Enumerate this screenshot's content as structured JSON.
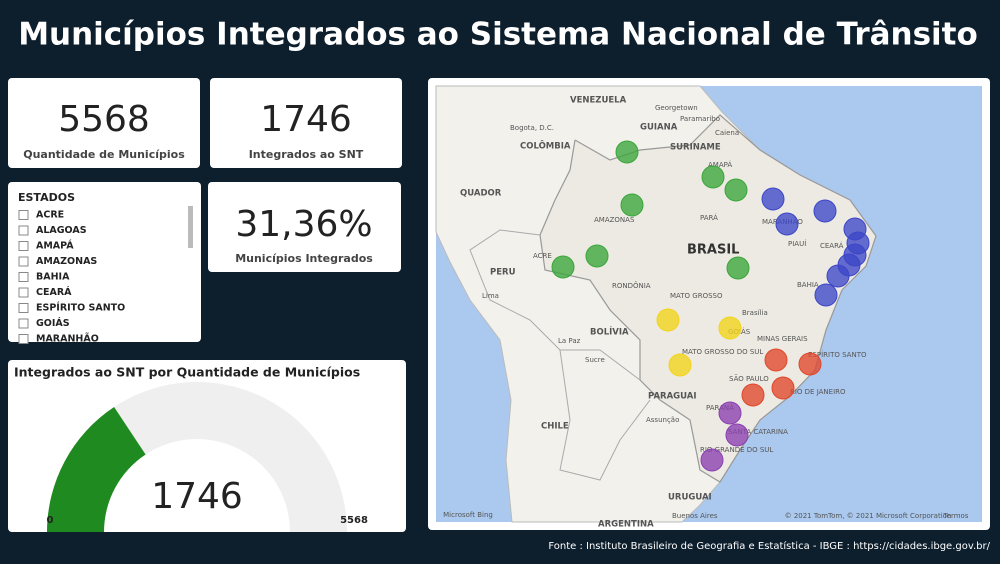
{
  "header": {
    "title": "Municípios Integrados ao Sistema Nacional de Trânsito"
  },
  "kpis": [
    {
      "value": "5568",
      "label": "Quantidade de Municípios"
    },
    {
      "value": "1746",
      "label": "Integrados ao SNT"
    },
    {
      "value": "31,36%",
      "label": "Municípios Integrados"
    }
  ],
  "slicer": {
    "title": "ESTADOS",
    "items": [
      "ACRE",
      "ALAGOAS",
      "AMAPÁ",
      "AMAZONAS",
      "BAHIA",
      "CEARÁ",
      "ESPÍRITO SANTO",
      "GOIÁS",
      "MARANHÃO"
    ]
  },
  "chart_data": {
    "type": "gauge",
    "title": "Integrados ao SNT por Quantidade de Municípios",
    "value": 1746,
    "min": 0,
    "max": 5568,
    "color": "#1f8a1f"
  },
  "map": {
    "labels": [
      "VENEZUELA",
      "Georgetown",
      "GUIANA",
      "Paramaribo",
      "SURINAME",
      "Caiena",
      "Bogota, D.C.",
      "COLÔMBIA",
      "AMAPÁ",
      "QUADOR",
      "AMAZONAS",
      "PARÁ",
      "MARANHÃO",
      "CEARÁ",
      "PIAUÍ",
      "BRASIL",
      "ACRE",
      "RONDÔNIA",
      "PERU",
      "Lima",
      "BAHIA",
      "MATO GROSSO",
      "Brasília",
      "GOIÁS",
      "BOLÍVIA",
      "La Paz",
      "Sucre",
      "MINAS GERAIS",
      "MATO GROSSO DO SUL",
      "ESPÍRITO SANTO",
      "SÃO PAULO",
      "RIO DE JANEIRO",
      "PARAGUAI",
      "Assunção",
      "PARANÁ",
      "SANTA CATARINA",
      "CHILE",
      "RIO GRANDE DO SUL",
      "URUGUAI",
      "Buenos Aires",
      "ARGENTINA",
      "Microsoft Bing",
      "© 2021 TomTom, © 2021 Microsoft Corporation",
      "Termos"
    ]
  },
  "footer": {
    "source": "Fonte : Instituto Brasileiro de Geografia e Estatística - IBGE : https://cidades.ibge.gov.br/"
  }
}
